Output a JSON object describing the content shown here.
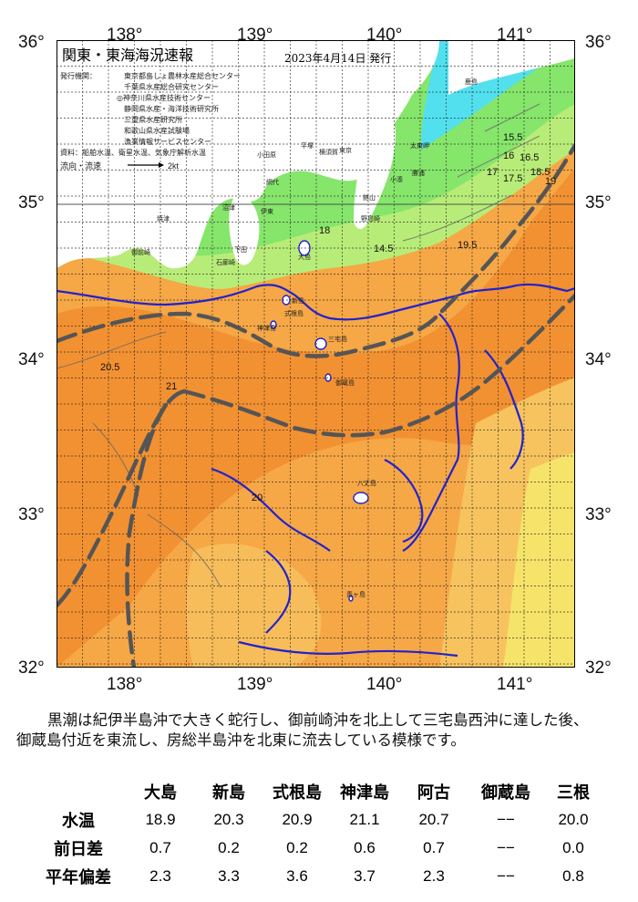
{
  "map": {
    "title": "関東・東海海況速報",
    "issue_date": "2023年4月14日 発行",
    "issuers_label": "発行機関：",
    "issuers": [
      "東京都島しょ農林水産総合センター",
      "千葉県水産総合研究センター",
      "◎神奈川県水産技術センター",
      "静岡県水産・海洋技術研究所",
      "三重県水産研究所",
      "和歌山県水産試験場",
      "漁業情報サービスセンター"
    ],
    "sources": "資料：船舶水温、衛星水温、気象庁解析水温",
    "flow_label": "流向・流速",
    "flow_scale": "2kt",
    "lon_labels": [
      "138°",
      "139°",
      "140°",
      "141°"
    ],
    "lat_labels": [
      "36°",
      "35°",
      "34°",
      "33°",
      "32°"
    ],
    "place_names": {
      "tokyo": "東京",
      "ohmiya": "大宮",
      "kashima": "鹿島",
      "taitou": "太東岬",
      "katsuura": "勝浦",
      "kominato": "小湊",
      "tateyama": "館山",
      "nojima": "野島崎",
      "yokosuka": "横須賀",
      "hiratsuka": "平塚",
      "odawara": "小田原",
      "ito": "伊東",
      "ajiro": "網代",
      "numazu": "沼津",
      "yaizu": "焼津",
      "omaezaki": "御前崎",
      "shimoda": "下田",
      "iro": "石廊崎",
      "irako": "伊良湖",
      "oshima": "大島",
      "niijima": "新島",
      "shikine": "式根島",
      "kozu": "神津島",
      "miyake": "三宅島",
      "mikura": "御蔵島",
      "hachijo": "八丈島",
      "aogashima": "青ヶ島"
    }
  },
  "description": {
    "line1": "黒潮は紀伊半島沖で大きく蛇行し、御前崎沖を北上して三宅島西沖に達した後、",
    "line2": "御蔵島付近を東流し、房総半島沖を北東に流去している模様です。"
  },
  "stats": {
    "columns": [
      "大島",
      "新島",
      "式根島",
      "神津島",
      "阿古",
      "御蔵島",
      "三根"
    ],
    "rows": [
      {
        "label": "水温",
        "values": [
          "18.9",
          "20.3",
          "20.9",
          "21.1",
          "20.7",
          "−−",
          "20.0"
        ]
      },
      {
        "label": "前日差",
        "values": [
          "0.7",
          "0.2",
          "0.2",
          "0.6",
          "0.7",
          "−−",
          "0.0"
        ]
      },
      {
        "label": "平年偏差",
        "values": [
          "2.3",
          "3.3",
          "3.6",
          "3.7",
          "2.3",
          "−−",
          "0.8"
        ]
      }
    ]
  },
  "map_contours": [
    "14.5",
    "15.5",
    "16",
    "16.5",
    "17",
    "17.5",
    "18",
    "18.5",
    "19",
    "19.5",
    "20",
    "20.5",
    "21"
  ],
  "colors": {
    "land": "#ffffff",
    "cold_cyan": "#52e0ef",
    "cool_green": "#86e56b",
    "light_green": "#b8ec78",
    "yellow": "#f6e36a",
    "light_orange": "#f7c35f",
    "orange": "#f6a746",
    "deep_orange": "#f08a2c",
    "kuroshio_axis": "#555555",
    "coast_outline": "#2222cc"
  }
}
